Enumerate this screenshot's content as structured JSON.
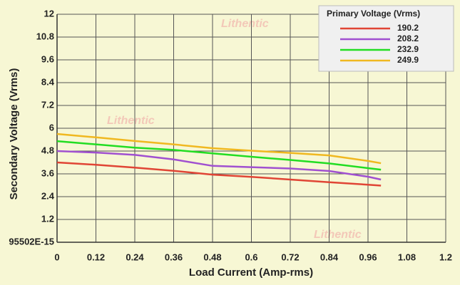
{
  "chart_data": {
    "type": "line",
    "x_label": "Load Current (Amp-rms)",
    "y_label": "Secondary Voltage (Vrms)",
    "legend_title": "Primary Voltage (Vrms)",
    "watermark": "Lithentic",
    "x": [
      0,
      0.12,
      0.24,
      0.36,
      0.48,
      0.6,
      0.72,
      0.84,
      0.96,
      1.0
    ],
    "series": [
      {
        "name": "190.2",
        "color": "#e04535",
        "values": [
          4.2,
          4.08,
          3.93,
          3.76,
          3.56,
          3.44,
          3.3,
          3.16,
          3.03,
          2.98
        ]
      },
      {
        "name": "208.2",
        "color": "#a050d0",
        "values": [
          4.8,
          4.72,
          4.6,
          4.36,
          4.02,
          3.95,
          3.88,
          3.75,
          3.45,
          3.3
        ]
      },
      {
        "name": "232.9",
        "color": "#22dd22",
        "values": [
          5.32,
          5.15,
          4.98,
          4.86,
          4.68,
          4.5,
          4.33,
          4.15,
          3.9,
          3.82
        ]
      },
      {
        "name": "249.9",
        "color": "#f0b820",
        "values": [
          5.7,
          5.52,
          5.33,
          5.15,
          4.95,
          4.82,
          4.7,
          4.57,
          4.28,
          4.16
        ]
      }
    ],
    "xlim": [
      0,
      1.2
    ],
    "xticks": [
      0,
      0.12,
      0.24,
      0.36,
      0.48,
      0.6,
      0.72,
      0.84,
      0.96,
      1.08,
      1.2
    ],
    "ylim": [
      0,
      12
    ],
    "yticks": [
      {
        "value": 0,
        "label": "95502E-15"
      },
      1.2,
      2.4,
      3.6,
      4.8,
      6,
      7.2,
      8.4,
      9.6,
      10.8,
      12
    ],
    "grid": true,
    "legend": "upper right"
  }
}
